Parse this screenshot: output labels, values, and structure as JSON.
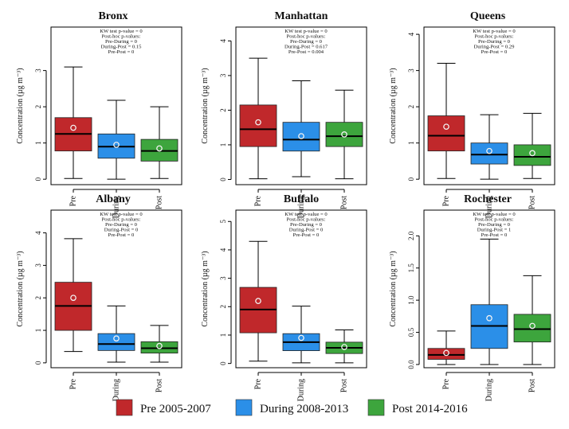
{
  "chart_data": {
    "type": "box",
    "ylabel": "Concentration (µg m⁻³)",
    "categories": [
      "Pre",
      "During",
      "Post"
    ],
    "legend": {
      "placement": "bottom",
      "entries": [
        {
          "label": "Pre 2005-2007",
          "color": "#c0282b"
        },
        {
          "label": "During 2008-2013",
          "color": "#2b8fe8"
        },
        {
          "label": "Post 2014-2016",
          "color": "#3da53d"
        }
      ]
    },
    "panels": [
      {
        "title": "Bronx",
        "ylim": [
          -0.15,
          4.2
        ],
        "yticks": [
          0,
          1,
          2,
          3
        ],
        "stats": [
          "KW test p-value = 0",
          "Post-hoc p-values:",
          "Pre-During = 0",
          "During-Post = 0.15",
          "Pre-Post = 0"
        ],
        "boxes": [
          {
            "min": 0.02,
            "q1": 0.78,
            "median": 1.25,
            "q3": 1.7,
            "max": 3.1,
            "mean": 1.42
          },
          {
            "min": 0.0,
            "q1": 0.58,
            "median": 0.9,
            "q3": 1.25,
            "max": 2.18,
            "mean": 0.95
          },
          {
            "min": 0.02,
            "q1": 0.5,
            "median": 0.78,
            "q3": 1.1,
            "max": 2.0,
            "mean": 0.85
          }
        ]
      },
      {
        "title": "Manhattan",
        "ylim": [
          -0.15,
          4.4
        ],
        "yticks": [
          0,
          1,
          2,
          3,
          4
        ],
        "stats": [
          "KW test p-value = 0",
          "Post-hoc p-values:",
          "Pre-During = 0",
          "During-Post = 0.617",
          "Pre-Post = 0.004"
        ],
        "boxes": [
          {
            "min": 0.02,
            "q1": 0.95,
            "median": 1.45,
            "q3": 2.15,
            "max": 3.5,
            "mean": 1.65
          },
          {
            "min": 0.08,
            "q1": 0.82,
            "median": 1.15,
            "q3": 1.65,
            "max": 2.85,
            "mean": 1.25
          },
          {
            "min": 0.02,
            "q1": 0.95,
            "median": 1.25,
            "q3": 1.65,
            "max": 2.58,
            "mean": 1.3
          }
        ]
      },
      {
        "title": "Queens",
        "ylim": [
          -0.15,
          4.2
        ],
        "yticks": [
          0,
          1,
          2,
          3,
          4
        ],
        "stats": [
          "KW test p-value = 0",
          "Post-hoc p-values:",
          "Pre-During = 0",
          "During-Post = 0.29",
          "Pre-Post = 0"
        ],
        "boxes": [
          {
            "min": 0.02,
            "q1": 0.78,
            "median": 1.2,
            "q3": 1.75,
            "max": 3.2,
            "mean": 1.45
          },
          {
            "min": 0.0,
            "q1": 0.42,
            "median": 0.68,
            "q3": 1.0,
            "max": 1.78,
            "mean": 0.78
          },
          {
            "min": 0.02,
            "q1": 0.38,
            "median": 0.62,
            "q3": 0.95,
            "max": 1.82,
            "mean": 0.72
          }
        ]
      },
      {
        "title": "Albany",
        "ylim": [
          -0.15,
          4.7
        ],
        "yticks": [
          0,
          1,
          2,
          3,
          4
        ],
        "stats": [
          "KW test p-value = 0",
          "Post-hoc p-values:",
          "Pre-During = 0",
          "During-Post = 0",
          "Pre-Post = 0"
        ],
        "boxes": [
          {
            "min": 0.35,
            "q1": 1.0,
            "median": 1.75,
            "q3": 2.48,
            "max": 3.82,
            "mean": 2.0
          },
          {
            "min": 0.02,
            "q1": 0.38,
            "median": 0.58,
            "q3": 0.9,
            "max": 1.75,
            "mean": 0.75
          },
          {
            "min": 0.02,
            "q1": 0.3,
            "median": 0.45,
            "q3": 0.65,
            "max": 1.15,
            "mean": 0.52
          }
        ]
      },
      {
        "title": "Buffalo",
        "ylim": [
          -0.15,
          5.4
        ],
        "yticks": [
          0,
          1,
          2,
          3,
          4,
          5
        ],
        "stats": [
          "KW test p-value = 0",
          "Post-hoc p-values:",
          "Pre-During = 0",
          "During-Post = 0",
          "Pre-Post = 0"
        ],
        "boxes": [
          {
            "min": 0.08,
            "q1": 1.08,
            "median": 1.9,
            "q3": 2.68,
            "max": 4.3,
            "mean": 2.2
          },
          {
            "min": 0.02,
            "q1": 0.45,
            "median": 0.75,
            "q3": 1.05,
            "max": 2.02,
            "mean": 0.9
          },
          {
            "min": 0.02,
            "q1": 0.35,
            "median": 0.55,
            "q3": 0.75,
            "max": 1.18,
            "mean": 0.58
          }
        ]
      },
      {
        "title": "Rochester",
        "ylim": [
          -0.05,
          2.4
        ],
        "yticks": [
          0.0,
          0.5,
          1.0,
          1.5,
          2.0
        ],
        "stats": [
          "KW test p-value = 0",
          "Post-hoc p-values:",
          "Pre-During = 0",
          "During-Post = 1",
          "Pre-Post = 0"
        ],
        "boxes": [
          {
            "min": 0.0,
            "q1": 0.08,
            "median": 0.15,
            "q3": 0.25,
            "max": 0.52,
            "mean": 0.18
          },
          {
            "min": 0.0,
            "q1": 0.25,
            "median": 0.6,
            "q3": 0.93,
            "max": 1.95,
            "mean": 0.72
          },
          {
            "min": 0.0,
            "q1": 0.35,
            "median": 0.55,
            "q3": 0.78,
            "max": 1.38,
            "mean": 0.6
          }
        ]
      }
    ]
  }
}
